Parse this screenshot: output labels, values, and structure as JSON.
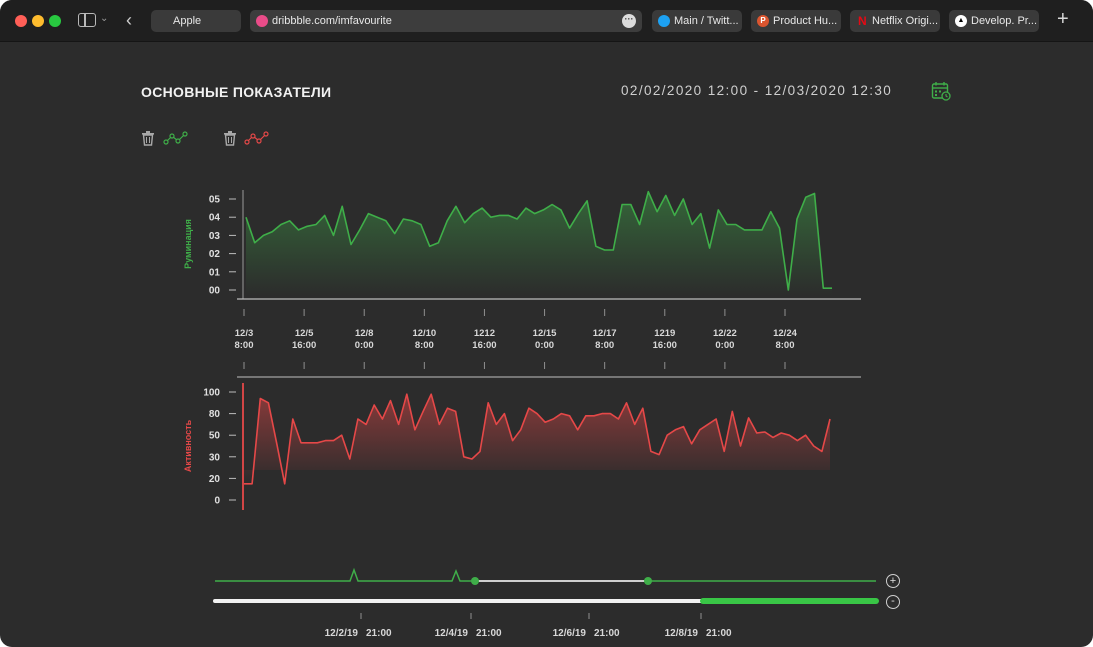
{
  "browser": {
    "tabs": [
      {
        "label": "Apple"
      },
      {
        "label": "Main / Twitt..."
      },
      {
        "label": "Product Hu..."
      },
      {
        "label": "Netflix Origi..."
      },
      {
        "label": "Develop. Pr..."
      }
    ],
    "url": "dribbble.com/imfavourite"
  },
  "header": {
    "title": "ОСНОВНЫЕ ПОКАЗАТЕЛИ",
    "date_range": "02/02/2020 12:00 - 12/03/2020 12:30"
  },
  "colors": {
    "green": "#3fae49",
    "red": "#e54848",
    "background": "#2c2c2c"
  },
  "chart_data": [
    {
      "type": "area",
      "ylabel": "Руминация",
      "yticks": [
        "05",
        "04",
        "03",
        "02",
        "01",
        "00"
      ],
      "ylim": [
        0,
        5
      ],
      "xticks": [
        {
          "date": "12/3",
          "time": "8:00"
        },
        {
          "date": "12/5",
          "time": "16:00"
        },
        {
          "date": "12/8",
          "time": "0:00"
        },
        {
          "date": "12/10",
          "time": "8:00"
        },
        {
          "date": "1212",
          "time": "16:00"
        },
        {
          "date": "12/15",
          "time": "0:00"
        },
        {
          "date": "12/17",
          "time": "8:00"
        },
        {
          "date": "1219",
          "time": "16:00"
        },
        {
          "date": "12/22",
          "time": "0:00"
        },
        {
          "date": "12/24",
          "time": "8:00"
        }
      ],
      "color": "#3fae49",
      "values": [
        4.0,
        2.6,
        3.0,
        3.2,
        3.6,
        3.8,
        3.3,
        3.5,
        3.6,
        4.1,
        3.0,
        4.6,
        2.5,
        3.3,
        4.2,
        4.0,
        3.8,
        3.1,
        3.9,
        3.8,
        3.6,
        2.4,
        2.6,
        3.8,
        4.6,
        3.7,
        4.2,
        4.5,
        4.0,
        4.1,
        4.1,
        3.9,
        4.5,
        4.2,
        4.4,
        4.7,
        4.4,
        3.4,
        4.2,
        4.9,
        2.4,
        2.2,
        2.2,
        4.7,
        4.7,
        3.6,
        5.4,
        4.3,
        5.2,
        4.1,
        5.0,
        3.6,
        4.2,
        2.3,
        4.4,
        3.6,
        3.6,
        3.3,
        3.3,
        3.3,
        4.3,
        3.4,
        0.0,
        3.9,
        5.1,
        5.3,
        0.1,
        0.1
      ]
    },
    {
      "type": "area",
      "ylabel": "Активность",
      "yticks": [
        "100",
        "80",
        "50",
        "30",
        "20",
        "0"
      ],
      "ylim": [
        0,
        100
      ],
      "color": "#e54848",
      "values": [
        15,
        15,
        94,
        90,
        53,
        15,
        75,
        53,
        53,
        53,
        55,
        55,
        60,
        38,
        75,
        70,
        88,
        75,
        92,
        70,
        98,
        65,
        82,
        98,
        70,
        85,
        82,
        40,
        38,
        45,
        90,
        70,
        80,
        55,
        65,
        85,
        80,
        72,
        75,
        80,
        78,
        65,
        78,
        78,
        80,
        80,
        75,
        90,
        70,
        85,
        45,
        42,
        60,
        65,
        68,
        52,
        65,
        70,
        75,
        45,
        82,
        50,
        76,
        62,
        63,
        58,
        62,
        60,
        55,
        60,
        50,
        45,
        75
      ]
    }
  ],
  "timeline": {
    "ticks": [
      {
        "date": "12/2/19",
        "time": "21:00"
      },
      {
        "date": "12/4/19",
        "time": "21:00"
      },
      {
        "date": "12/6/19",
        "time": "21:00"
      },
      {
        "date": "12/8/19",
        "time": "21:00"
      }
    ],
    "zoom_in": "+",
    "zoom_out": "-"
  }
}
